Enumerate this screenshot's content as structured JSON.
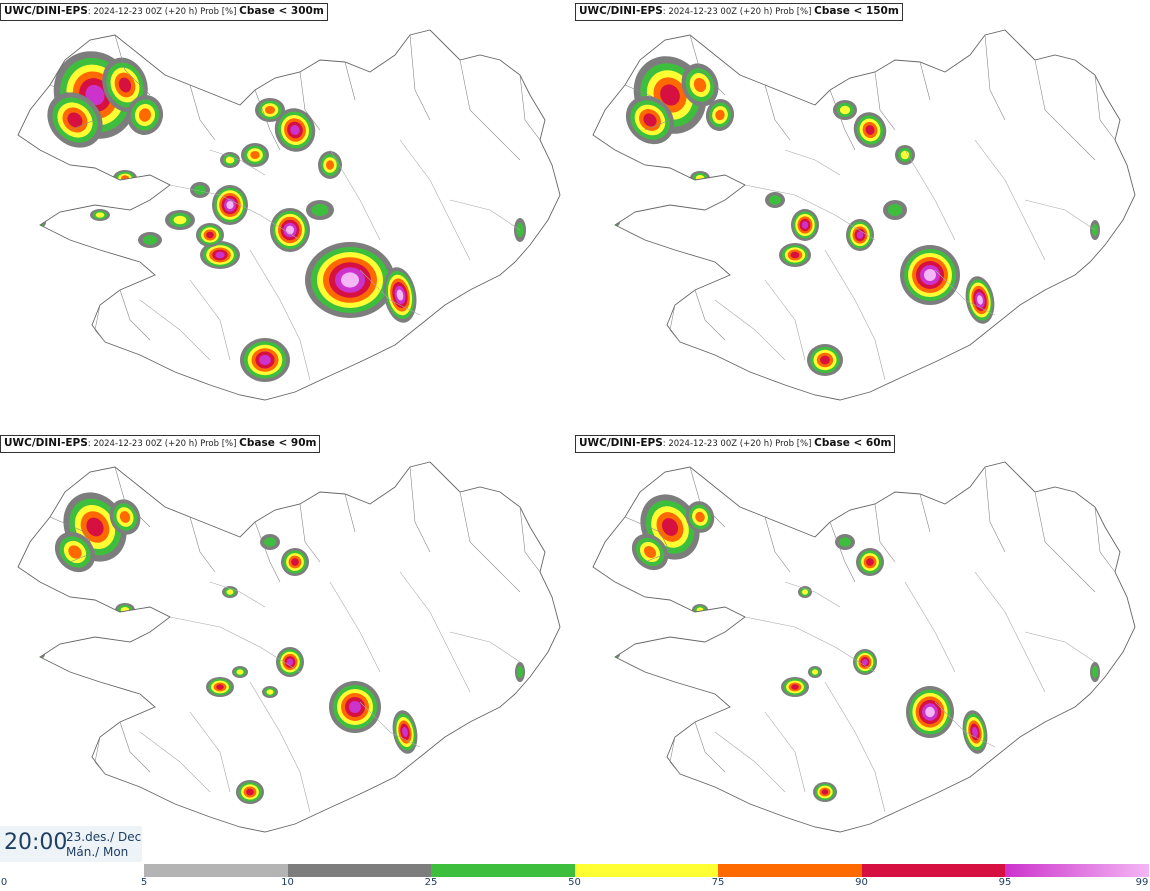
{
  "panels": [
    {
      "model": "UWC/DINI-EPS",
      "meta": ": 2024-12-23 00Z (+20 h) Prob [%] ",
      "threshold": "Cbase < 300m"
    },
    {
      "model": "UWC/DINI-EPS",
      "meta": ": 2024-12-23 00Z (+20 h) Prob [%] ",
      "threshold": "Cbase < 150m"
    },
    {
      "model": "UWC/DINI-EPS",
      "meta": ": 2024-12-23 00Z (+20 h) Prob [%] ",
      "threshold": "Cbase < 90m"
    },
    {
      "model": "UWC/DINI-EPS",
      "meta": ": 2024-12-23 00Z (+20 h) Prob [%] ",
      "threshold": "Cbase < 60m"
    }
  ],
  "time": {
    "clock": "20:00",
    "date_line": "23.des./ Dec",
    "day_line": "Mán./ Mon"
  },
  "legend": {
    "ticks": [
      "0",
      "5",
      "10",
      "25",
      "50",
      "75",
      "90",
      "95",
      "99"
    ],
    "bins": [
      {
        "from": "5",
        "to": "10",
        "color": "#b4b4b4"
      },
      {
        "from": "10",
        "to": "25",
        "color": "#7d7d7d"
      },
      {
        "from": "25",
        "to": "50",
        "color": "#3dbf3d"
      },
      {
        "from": "50",
        "to": "75",
        "color": "#ffff33"
      },
      {
        "from": "75",
        "to": "90",
        "color": "#ff6a00"
      },
      {
        "from": "90",
        "to": "95",
        "color": "#d61040"
      },
      {
        "from": "95",
        "to": "99",
        "color": "#cc33cc"
      }
    ],
    "top_color": "#f4b6f4"
  }
}
